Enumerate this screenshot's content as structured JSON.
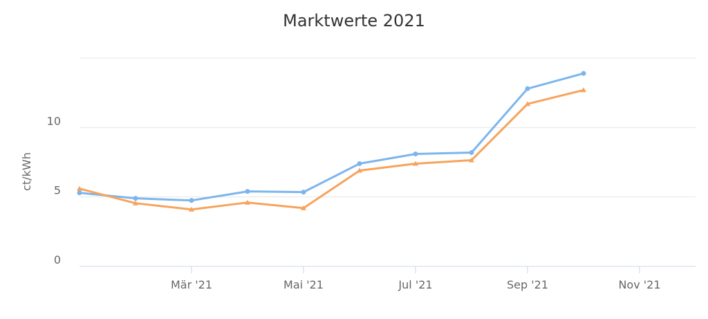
{
  "chart_data": {
    "type": "line",
    "title": "Marktwerte 2021",
    "xlabel": "",
    "ylabel": "ct/kWh",
    "x": [
      "2021-01",
      "2021-02",
      "2021-03",
      "2021-04",
      "2021-05",
      "2021-06",
      "2021-07",
      "2021-08",
      "2021-09",
      "2021-10"
    ],
    "x_tick_labels": [
      "Mär '21",
      "Mai '21",
      "Jul '21",
      "Sep '21",
      "Nov '21"
    ],
    "y_ticks": [
      0,
      5,
      10
    ],
    "ylim": [
      0,
      15
    ],
    "grid": true,
    "legend": "none",
    "series": [
      {
        "values": [
          5.3,
          4.9,
          4.75,
          5.4,
          5.35,
          7.4,
          8.1,
          8.2,
          12.8,
          13.9
        ],
        "color": "#7cb5ec",
        "marker": "circle"
      },
      {
        "values": [
          5.6,
          4.55,
          4.1,
          4.6,
          4.2,
          6.9,
          7.4,
          7.65,
          11.7,
          12.7
        ],
        "color": "#f7a35c",
        "marker": "triangle"
      }
    ]
  }
}
